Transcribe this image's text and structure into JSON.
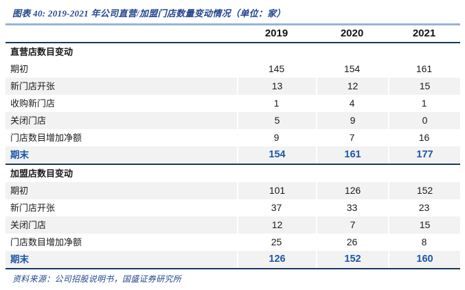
{
  "title": "图表 40: 2019-2021 年公司直营/加盟门店数量变动情况（单位：家）",
  "source": "资料来源：公司招股说明书，国盛证券研究所",
  "colors": {
    "title_blue": "#24468F",
    "rule_light_blue": "#95B3D7",
    "rule_navy": "#17375E",
    "stripe_gray": "#F2F2F2",
    "emphasis_blue": "#1B56A7",
    "body_black": "#1a1a1a"
  },
  "chart_data": {
    "type": "table",
    "columns": [
      "2019",
      "2020",
      "2021"
    ],
    "sections": [
      {
        "header": "直营店数目变动",
        "rows": [
          {
            "label": "期初",
            "values": [
              145,
              154,
              161
            ]
          },
          {
            "label": "新门店开张",
            "values": [
              13,
              12,
              15
            ]
          },
          {
            "label": "收购新门店",
            "values": [
              1,
              4,
              1
            ]
          },
          {
            "label": "关闭门店",
            "values": [
              5,
              9,
              0
            ]
          },
          {
            "label": "门店数目增加净额",
            "values": [
              9,
              7,
              16
            ]
          },
          {
            "label": "期末",
            "values": [
              154,
              161,
              177
            ],
            "emphasis": true
          }
        ]
      },
      {
        "header": "加盟店数目变动",
        "rows": [
          {
            "label": "期初",
            "values": [
              101,
              126,
              152
            ]
          },
          {
            "label": "新门店开张",
            "values": [
              37,
              33,
              23
            ]
          },
          {
            "label": "关闭门店",
            "values": [
              12,
              7,
              15
            ]
          },
          {
            "label": "门店数目增加净额",
            "values": [
              25,
              26,
              8
            ]
          },
          {
            "label": "期末",
            "values": [
              126,
              152,
              160
            ],
            "emphasis": true
          }
        ]
      }
    ]
  }
}
